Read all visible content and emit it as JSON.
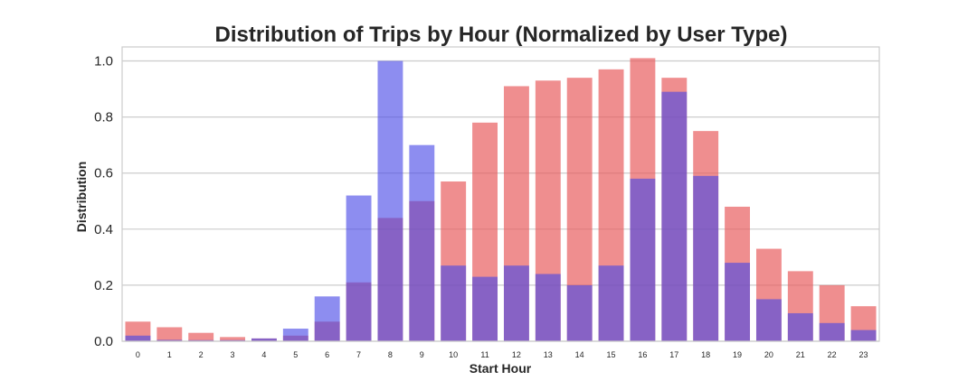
{
  "chart_data": {
    "type": "bar",
    "title": "Distribution of Trips by Hour (Normalized by User Type)",
    "xlabel": "Start Hour",
    "ylabel": "Distribution",
    "categories": [
      "0",
      "1",
      "2",
      "3",
      "4",
      "5",
      "6",
      "7",
      "8",
      "9",
      "10",
      "11",
      "12",
      "13",
      "14",
      "15",
      "16",
      "17",
      "18",
      "19",
      "20",
      "21",
      "22",
      "23"
    ],
    "ylim": [
      0,
      1.05
    ],
    "yticks": [
      "0.0",
      "0.2",
      "0.4",
      "0.6",
      "0.8",
      "1.0"
    ],
    "grid": true,
    "legend": "none",
    "series": [
      {
        "color": "#e8585a",
        "opacity": 0.68,
        "values": [
          0.07,
          0.05,
          0.03,
          0.015,
          0.01,
          0.02,
          0.07,
          0.21,
          0.44,
          0.5,
          0.57,
          0.78,
          0.91,
          0.93,
          0.94,
          0.97,
          1.01,
          0.94,
          0.75,
          0.48,
          0.33,
          0.25,
          0.2,
          0.125
        ]
      },
      {
        "color": "#4747e6",
        "opacity": 0.62,
        "values": [
          0.02,
          0.005,
          0.004,
          0.004,
          0.01,
          0.045,
          0.16,
          0.52,
          1.0,
          0.7,
          0.27,
          0.23,
          0.27,
          0.24,
          0.2,
          0.27,
          0.58,
          0.89,
          0.59,
          0.28,
          0.15,
          0.1,
          0.065,
          0.04
        ]
      }
    ]
  }
}
